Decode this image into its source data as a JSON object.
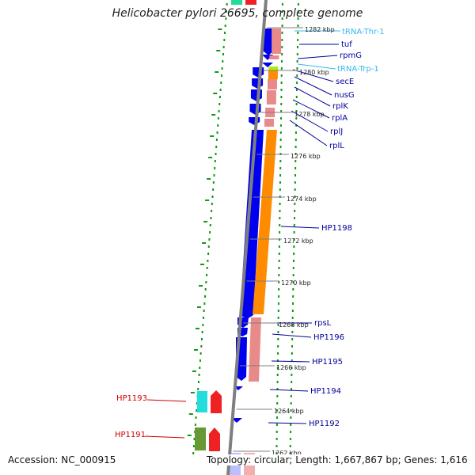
{
  "title": "Helicobacter pylori 26695, complete genome",
  "footer": {
    "accession": "Accession: NC_000915",
    "topology": "Topology: circular; Length: 1,667,867 bp; Genes: 1,616"
  },
  "colors": {
    "cds": "#0000ee",
    "rrna_trna": "#ff8c00",
    "trna_label": "#33bbee",
    "gene_label": "#000099",
    "hp_label": "#cc0000",
    "salmon": "#e88a8a",
    "ruler": "#7f7f7f",
    "dots": "#119911"
  },
  "kbp_ticks": [
    "1282 kbp",
    "1280 kbp",
    "1278 kbp",
    "1276 kbp",
    "1274 kbp",
    "1272 kbp",
    "1270 kbp",
    "1268 kbp",
    "1266 kbp",
    "1264 kbp",
    "1262 kbp"
  ],
  "gene_labels": [
    {
      "text": "tRNA-Thr-1",
      "kind": "trna"
    },
    {
      "text": "tuf",
      "kind": "gene"
    },
    {
      "text": "rpmG",
      "kind": "gene"
    },
    {
      "text": "tRNA-Trp-1",
      "kind": "trna"
    },
    {
      "text": "secE",
      "kind": "gene"
    },
    {
      "text": "nusG",
      "kind": "gene"
    },
    {
      "text": "rplK",
      "kind": "gene"
    },
    {
      "text": "rplA",
      "kind": "gene"
    },
    {
      "text": "rplJ",
      "kind": "gene"
    },
    {
      "text": "rplL",
      "kind": "gene"
    },
    {
      "text": "HP1198",
      "kind": "gene"
    },
    {
      "text": "rpsL",
      "kind": "gene"
    },
    {
      "text": "HP1196",
      "kind": "gene"
    },
    {
      "text": "HP1195",
      "kind": "gene"
    },
    {
      "text": "HP1194",
      "kind": "gene"
    },
    {
      "text": "HP1192",
      "kind": "gene"
    },
    {
      "text": "HP1193",
      "kind": "hp"
    },
    {
      "text": "HP1191",
      "kind": "hp"
    }
  ]
}
